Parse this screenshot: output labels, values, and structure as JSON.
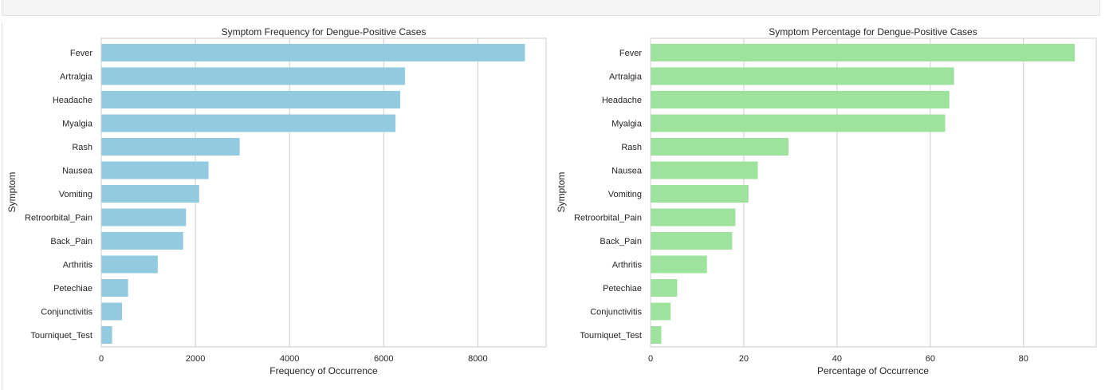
{
  "chart_data": [
    {
      "type": "bar",
      "orientation": "horizontal",
      "title": "Symptom Frequency for Dengue-Positive Cases",
      "xlabel": "Frequency of Occurrence",
      "ylabel": "Symptom",
      "categories": [
        "Fever",
        "Artralgia",
        "Headache",
        "Myalgia",
        "Rash",
        "Nausea",
        "Vomiting",
        "Retroorbital_Pain",
        "Back_Pain",
        "Arthritis",
        "Petechiae",
        "Conjunctivitis",
        "Tourniquet_Test"
      ],
      "values": [
        9000,
        6450,
        6350,
        6250,
        2940,
        2280,
        2080,
        1800,
        1740,
        1200,
        570,
        440,
        230
      ],
      "xlim": [
        0,
        9450
      ],
      "xticks": [
        0,
        2000,
        4000,
        6000,
        8000
      ],
      "xtick_labels": [
        "0",
        "2000",
        "4000",
        "6000",
        "8000"
      ],
      "grid": "vertical",
      "bar_color": "#92cae0"
    },
    {
      "type": "bar",
      "orientation": "horizontal",
      "title": "Symptom Percentage for Dengue-Positive Cases",
      "xlabel": "Percentage of Occurrence",
      "ylabel": "Symptom",
      "categories": [
        "Fever",
        "Artralgia",
        "Headache",
        "Myalgia",
        "Rash",
        "Nausea",
        "Vomiting",
        "Retroorbital_Pain",
        "Back_Pain",
        "Arthritis",
        "Petechiae",
        "Conjunctivitis",
        "Tourniquet_Test"
      ],
      "values": [
        91.0,
        65.1,
        64.1,
        63.2,
        29.6,
        23.0,
        21.0,
        18.2,
        17.5,
        12.1,
        5.7,
        4.3,
        2.3
      ],
      "xlim": [
        0,
        95.6
      ],
      "xticks": [
        0,
        20,
        40,
        60,
        80
      ],
      "xtick_labels": [
        "0",
        "20",
        "40",
        "60",
        "80"
      ],
      "grid": "vertical",
      "bar_color": "#9de39d"
    }
  ]
}
